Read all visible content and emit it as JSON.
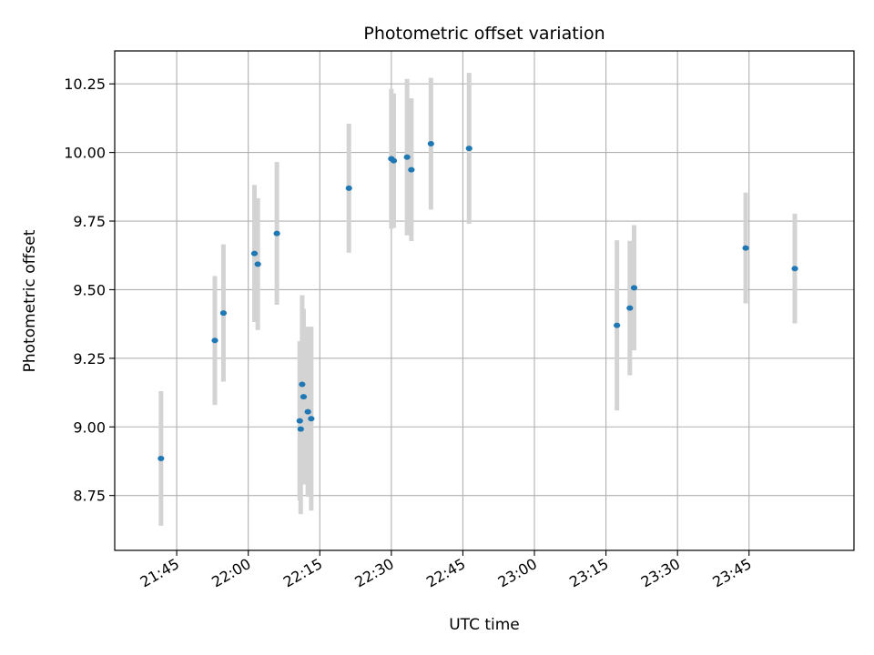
{
  "chart_data": {
    "type": "scatter",
    "title": "Photometric offset variation",
    "xlabel": "UTC time",
    "ylabel": "Photometric offset",
    "x_unit": "minutes",
    "xlim": [
      1292,
      1447
    ],
    "ylim": [
      8.55,
      10.37
    ],
    "grid": true,
    "x_ticks": [
      {
        "value": 1305,
        "label": "21:45"
      },
      {
        "value": 1320,
        "label": "22:00"
      },
      {
        "value": 1335,
        "label": "22:15"
      },
      {
        "value": 1350,
        "label": "22:30"
      },
      {
        "value": 1365,
        "label": "22:45"
      },
      {
        "value": 1380,
        "label": "23:00"
      },
      {
        "value": 1395,
        "label": "23:15"
      },
      {
        "value": 1410,
        "label": "23:30"
      },
      {
        "value": 1425,
        "label": "23:45"
      }
    ],
    "y_ticks": [
      {
        "value": 8.75,
        "label": "8.75"
      },
      {
        "value": 9.0,
        "label": "9.00"
      },
      {
        "value": 9.25,
        "label": "9.25"
      },
      {
        "value": 9.5,
        "label": "9.50"
      },
      {
        "value": 9.75,
        "label": "9.75"
      },
      {
        "value": 10.0,
        "label": "10.00"
      },
      {
        "value": 10.25,
        "label": "10.25"
      }
    ],
    "colors": {
      "point": "#1f77b4",
      "error_bar": "#d3d3d3",
      "grid": "#b0b0b0"
    },
    "points": [
      {
        "x": 1301.7,
        "y": 8.885,
        "err": 0.245
      },
      {
        "x": 1313.0,
        "y": 9.315,
        "err": 0.235
      },
      {
        "x": 1314.8,
        "y": 9.415,
        "err": 0.25
      },
      {
        "x": 1321.3,
        "y": 9.632,
        "err": 0.25
      },
      {
        "x": 1322.0,
        "y": 9.593,
        "err": 0.24
      },
      {
        "x": 1326.0,
        "y": 9.705,
        "err": 0.26
      },
      {
        "x": 1330.8,
        "y": 9.022,
        "err": 0.29
      },
      {
        "x": 1331.0,
        "y": 8.992,
        "err": 0.31
      },
      {
        "x": 1331.3,
        "y": 9.155,
        "err": 0.325
      },
      {
        "x": 1331.6,
        "y": 9.11,
        "err": 0.32
      },
      {
        "x": 1332.5,
        "y": 9.055,
        "err": 0.31
      },
      {
        "x": 1333.2,
        "y": 9.03,
        "err": 0.335
      },
      {
        "x": 1341.1,
        "y": 9.87,
        "err": 0.235
      },
      {
        "x": 1350.0,
        "y": 9.977,
        "err": 0.255
      },
      {
        "x": 1350.5,
        "y": 9.97,
        "err": 0.245
      },
      {
        "x": 1353.3,
        "y": 9.983,
        "err": 0.285
      },
      {
        "x": 1354.2,
        "y": 9.937,
        "err": 0.26
      },
      {
        "x": 1358.3,
        "y": 10.032,
        "err": 0.24
      },
      {
        "x": 1366.3,
        "y": 10.015,
        "err": 0.275
      },
      {
        "x": 1397.3,
        "y": 9.37,
        "err": 0.31
      },
      {
        "x": 1400.0,
        "y": 9.433,
        "err": 0.245
      },
      {
        "x": 1400.9,
        "y": 9.507,
        "err": 0.228
      },
      {
        "x": 1424.3,
        "y": 9.652,
        "err": 0.202
      },
      {
        "x": 1434.6,
        "y": 9.577,
        "err": 0.2
      }
    ]
  }
}
